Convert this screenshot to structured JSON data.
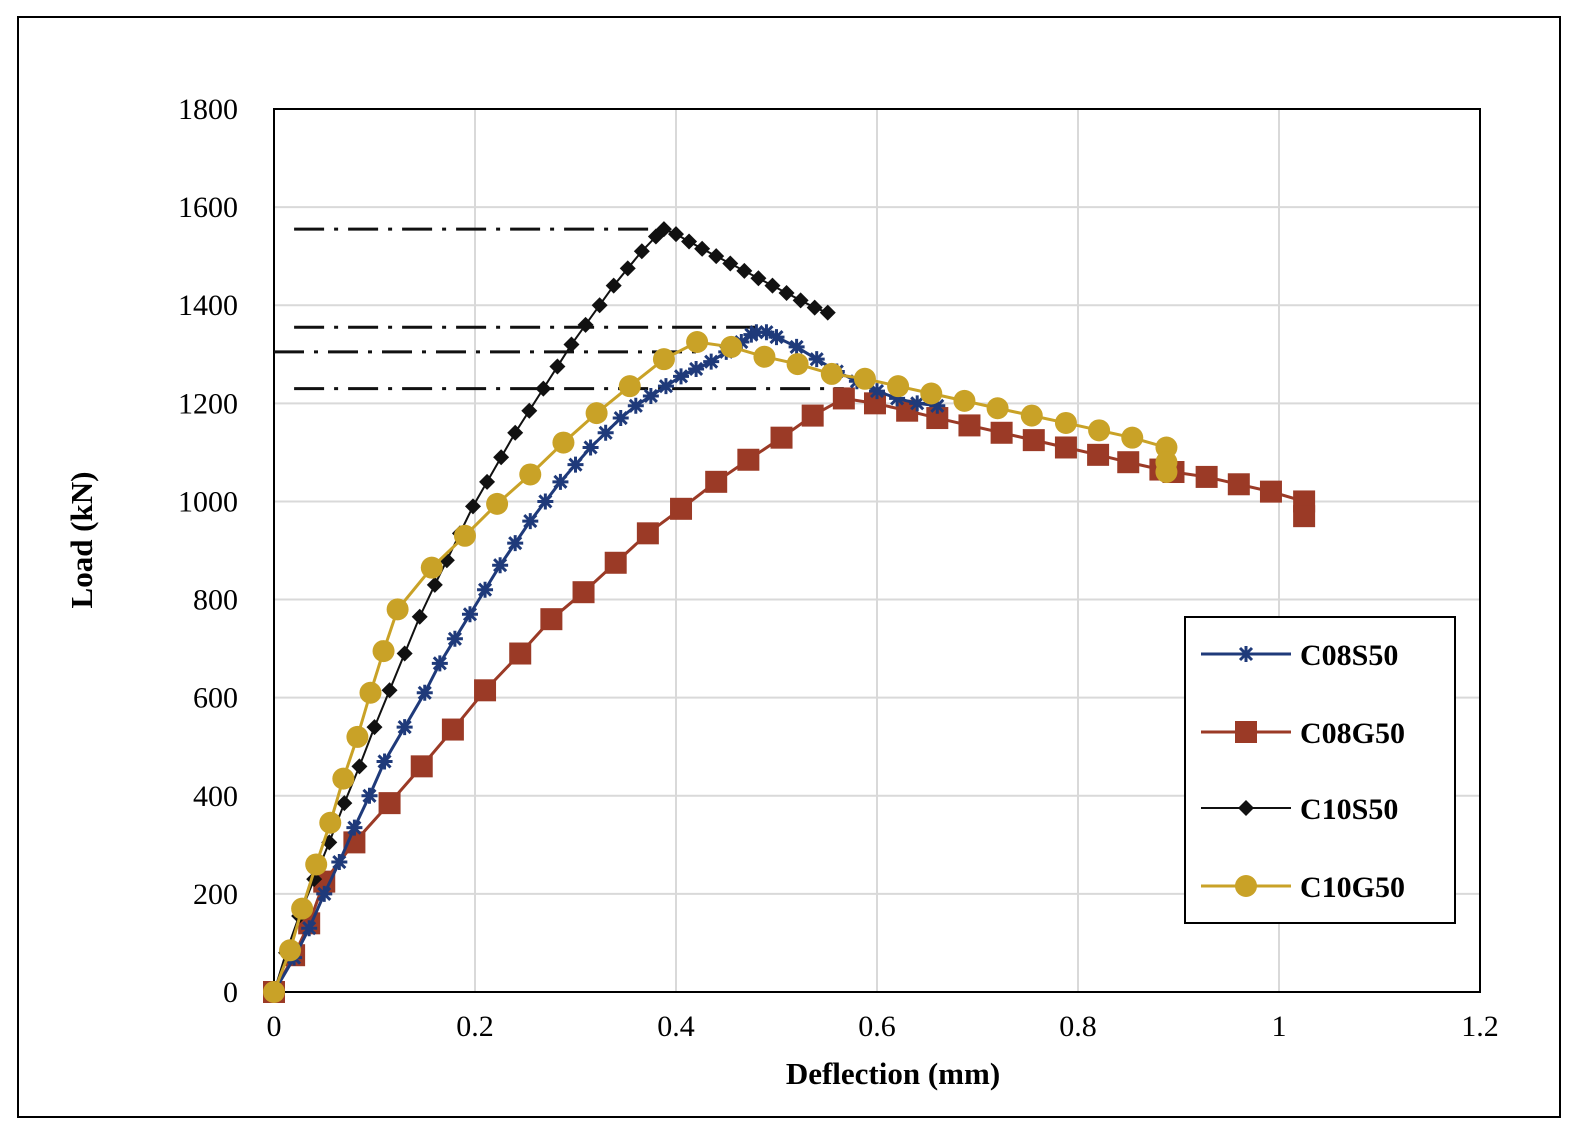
{
  "chart_data": {
    "type": "line",
    "title": "",
    "xlabel": "Deflection (mm)",
    "ylabel": "Load (kN)",
    "xlim": [
      0,
      1.2
    ],
    "ylim": [
      0,
      1800
    ],
    "xticks": [
      0,
      0.2,
      0.4,
      0.6,
      0.8,
      1,
      1.2
    ],
    "xtick_labels": [
      "0",
      "0.2",
      "0.4",
      "0.6",
      "0.8",
      "1",
      "1.2"
    ],
    "yticks": [
      0,
      200,
      400,
      600,
      800,
      1000,
      1200,
      1400,
      1600,
      1800
    ],
    "ytick_labels": [
      "0",
      "200",
      "400",
      "600",
      "800",
      "1000",
      "1200",
      "1400",
      "1600",
      "1800"
    ],
    "grid": true,
    "legend_position": "bottom-right",
    "series": [
      {
        "name": "C08S50",
        "color": "#1f3a7a",
        "marker": "star",
        "x": [
          0,
          0.02,
          0.035,
          0.05,
          0.065,
          0.08,
          0.095,
          0.11,
          0.13,
          0.15,
          0.165,
          0.18,
          0.195,
          0.21,
          0.225,
          0.24,
          0.255,
          0.27,
          0.285,
          0.3,
          0.315,
          0.33,
          0.345,
          0.36,
          0.375,
          0.39,
          0.405,
          0.42,
          0.435,
          0.45,
          0.465,
          0.475,
          0.48,
          0.49,
          0.5,
          0.52,
          0.54,
          0.56,
          0.58,
          0.6,
          0.62,
          0.64,
          0.66
        ],
        "y": [
          0,
          70,
          130,
          200,
          265,
          335,
          400,
          470,
          540,
          610,
          670,
          720,
          770,
          820,
          870,
          915,
          960,
          1000,
          1040,
          1075,
          1110,
          1140,
          1170,
          1195,
          1215,
          1235,
          1255,
          1270,
          1285,
          1305,
          1325,
          1340,
          1345,
          1345,
          1335,
          1315,
          1290,
          1265,
          1245,
          1225,
          1210,
          1200,
          1195
        ]
      },
      {
        "name": "C08G50",
        "color": "#9b3a26",
        "marker": "square",
        "x": [
          0,
          0.02,
          0.035,
          0.05,
          0.08,
          0.115,
          0.147,
          0.178,
          0.21,
          0.245,
          0.276,
          0.308,
          0.34,
          0.372,
          0.405,
          0.44,
          0.472,
          0.505,
          0.536,
          0.567,
          0.598,
          0.63,
          0.66,
          0.692,
          0.724,
          0.756,
          0.788,
          0.82,
          0.85,
          0.882,
          0.895,
          0.928,
          0.96,
          0.992,
          1.025,
          1.025
        ],
        "y": [
          0,
          75,
          140,
          225,
          305,
          385,
          460,
          535,
          615,
          690,
          760,
          815,
          875,
          935,
          985,
          1040,
          1085,
          1130,
          1175,
          1210,
          1200,
          1185,
          1170,
          1155,
          1140,
          1125,
          1110,
          1095,
          1080,
          1065,
          1060,
          1050,
          1035,
          1020,
          1000,
          970
        ]
      },
      {
        "name": "C10S50",
        "color": "#111111",
        "marker": "diamond",
        "x": [
          0,
          0.012,
          0.025,
          0.04,
          0.055,
          0.07,
          0.085,
          0.1,
          0.115,
          0.13,
          0.145,
          0.16,
          0.172,
          0.185,
          0.198,
          0.212,
          0.226,
          0.24,
          0.254,
          0.268,
          0.282,
          0.296,
          0.31,
          0.324,
          0.338,
          0.352,
          0.366,
          0.38,
          0.388,
          0.4,
          0.413,
          0.426,
          0.44,
          0.454,
          0.468,
          0.482,
          0.496,
          0.51,
          0.524,
          0.538,
          0.551
        ],
        "y": [
          0,
          80,
          155,
          230,
          305,
          385,
          460,
          540,
          615,
          690,
          765,
          830,
          880,
          935,
          990,
          1040,
          1090,
          1140,
          1185,
          1230,
          1275,
          1320,
          1360,
          1400,
          1440,
          1475,
          1510,
          1540,
          1555,
          1545,
          1530,
          1515,
          1500,
          1485,
          1470,
          1455,
          1440,
          1425,
          1410,
          1395,
          1385
        ]
      },
      {
        "name": "C10G50",
        "color": "#c9a227",
        "marker": "circle",
        "x": [
          0,
          0.016,
          0.028,
          0.042,
          0.056,
          0.069,
          0.083,
          0.096,
          0.109,
          0.123,
          0.157,
          0.19,
          0.222,
          0.255,
          0.288,
          0.321,
          0.354,
          0.388,
          0.421,
          0.455,
          0.488,
          0.521,
          0.555,
          0.588,
          0.621,
          0.654,
          0.687,
          0.72,
          0.754,
          0.788,
          0.821,
          0.854,
          0.888,
          0.888,
          0.888
        ],
        "y": [
          0,
          85,
          170,
          260,
          345,
          435,
          520,
          610,
          695,
          780,
          865,
          930,
          995,
          1055,
          1120,
          1180,
          1235,
          1290,
          1325,
          1315,
          1295,
          1280,
          1260,
          1250,
          1235,
          1220,
          1205,
          1190,
          1175,
          1160,
          1145,
          1130,
          1110,
          1080,
          1060
        ]
      }
    ],
    "reference_lines": [
      {
        "name": "peak-C10S50",
        "y": 1555,
        "x_start": 0.02,
        "x_end": 0.388,
        "style": "dash-dot"
      },
      {
        "name": "peak-C08S50",
        "y": 1355,
        "x_start": 0.02,
        "x_end": 0.48,
        "style": "dash-dot"
      },
      {
        "name": "peak-C10G50",
        "y": 1305,
        "x_start": 0.0,
        "x_end": 0.42,
        "style": "dash-dot"
      },
      {
        "name": "peak-C08G50",
        "y": 1230,
        "x_start": 0.02,
        "x_end": 0.567,
        "style": "dash-dot"
      }
    ]
  }
}
